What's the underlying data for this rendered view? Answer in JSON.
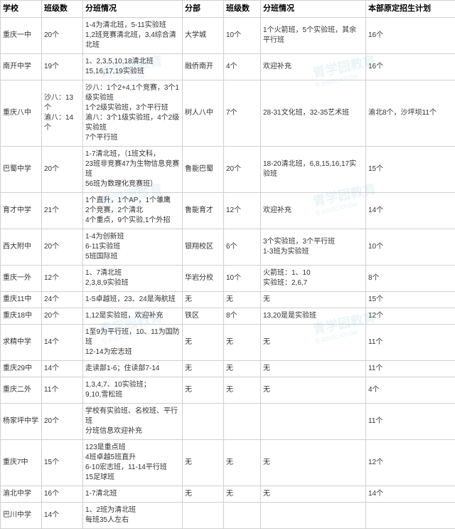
{
  "headers": [
    "学校",
    "班级数",
    "分班情况",
    "分部",
    "班级数",
    "分班情况",
    "本部原定招生计划"
  ],
  "rows": [
    [
      "重庆一中",
      "20个",
      "1-4为清北班，5-11实验班\n1,2班竞赛清北班，3,4综合清北班",
      "大学城",
      "10个",
      "1个火箭班，5个实验班，其余平行班",
      "16个"
    ],
    [
      "南开中学",
      "19个",
      "1、2,3,5,10,18清北班\n15,16,17,19实验班",
      "融侨南开",
      "4个",
      "欢迎补充",
      "16个"
    ],
    [
      "重庆八中",
      "沙八：13个\n渝八：14个",
      "沙八：1个2+4,1个竞赛，3个1级实验班\n1个2级实验班，3个平行班\n渝八：3个1级实验班，4个2级实验班\n7个平行班",
      "树人八中",
      "7个",
      "28-31文化班，32-35艺术班",
      "渝北8个，沙坪坝11个"
    ],
    [
      "巴蜀中学",
      "20个",
      "1-7清北班，（1班文科，\n23班非竞赛47为生物信息竞赛班\n56班为数理化竞赛班）",
      "鲁能巴蜀",
      "20个",
      "18-20清北班，6,8,15,16,17实验班",
      "15个"
    ],
    [
      "育才中学",
      "21个",
      "1个直升，1个AP，1个雏鹰\n2个竞赛，2个清北\n4个重点，9个实验,1个外招",
      "鲁能育才",
      "12个",
      "欢迎补充",
      "14个"
    ],
    [
      "西大附中",
      "20个",
      "1-4为创新班\n6-11实验班\n5班国际班",
      "银翔校区",
      "6个",
      "3个实验班，3个平行班\n1-3班为实验班",
      "10个"
    ],
    [
      "重庆一外",
      "12个",
      "1、7清北班\n2,3,8,9实验班",
      "华岩分校",
      "10个",
      "火箭班：1、10\n实验班：2,6,7",
      "8个"
    ],
    [
      "重庆11中",
      "24个",
      "1-5卓越班，23、24是海航班",
      "无",
      "无",
      "无",
      "15个"
    ],
    [
      "重庆18中",
      "20个",
      "1,12是实验班，欢迎补充",
      "铁区",
      "8个",
      "13,20是是实验班",
      "12个"
    ],
    [
      "求精中学",
      "14个",
      "1至9为平行班，10、11为国防班\n12-14为宏志班",
      "无",
      "无",
      "无",
      "11个"
    ],
    [
      "重庆29中",
      "14个",
      "走读部1-6；住读部7-14",
      "无",
      "无",
      "无",
      "11个"
    ],
    [
      "重庆二外",
      "11个",
      "1,3,4,7、10实验班；\n9,10,雪松班",
      "无",
      "无",
      "无",
      "4个"
    ],
    [
      "杨家坪中学",
      "20个",
      "学校有实验班、名校班、平行班\n分班信息欢迎补充",
      "",
      "",
      "",
      "11个"
    ],
    [
      "重庆7中",
      "15个",
      "123是重点班\n4班卓越5班直升\n6-10宏志班，11-14平行班\n15足球班",
      "无",
      "无",
      "无",
      "12个"
    ],
    [
      "渝北中学",
      "16个",
      "1-7清北班",
      "无",
      "无",
      "无",
      "14个"
    ],
    [
      "巴川中学",
      "14个",
      "1、2班为清北班\n每班35人左右",
      "",
      "",
      "",
      ""
    ]
  ],
  "watermark": {
    "main": "青学园教育",
    "sub": "Q.EDUCATION"
  }
}
